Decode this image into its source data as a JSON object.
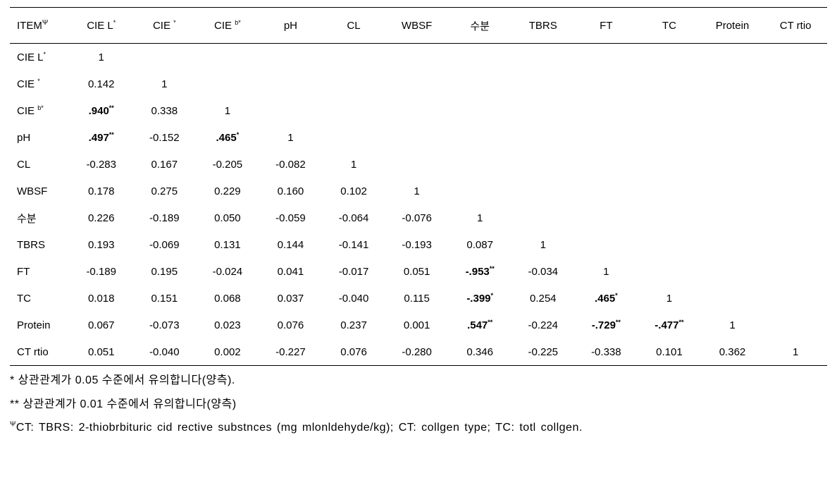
{
  "table": {
    "columns": [
      {
        "label": "ITEM",
        "sup": "Ψ"
      },
      {
        "label": "CIE L",
        "sup": "*"
      },
      {
        "label": "CIE ",
        "sup": "*"
      },
      {
        "label": "CIE ",
        "sup": "b*"
      },
      {
        "label": "pH"
      },
      {
        "label": "CL"
      },
      {
        "label": "WBSF"
      },
      {
        "label": "수분"
      },
      {
        "label": "TBRS"
      },
      {
        "label": "FT"
      },
      {
        "label": "TC"
      },
      {
        "label": "Protein"
      },
      {
        "label": "CT rtio"
      }
    ],
    "rows": [
      {
        "name": {
          "label": "CIE L",
          "sup": "*"
        },
        "cells": [
          {
            "v": "1"
          }
        ]
      },
      {
        "name": {
          "label": "CIE ",
          "sup": "*"
        },
        "cells": [
          {
            "v": "0.142"
          },
          {
            "v": "1"
          }
        ]
      },
      {
        "name": {
          "label": "CIE ",
          "sup": "b*"
        },
        "cells": [
          {
            "v": ".940",
            "sup": "**",
            "bold": true
          },
          {
            "v": "0.338"
          },
          {
            "v": "1"
          }
        ]
      },
      {
        "name": {
          "label": "pH"
        },
        "cells": [
          {
            "v": ".497",
            "sup": "**",
            "bold": true
          },
          {
            "v": "-0.152"
          },
          {
            "v": ".465",
            "sup": "*",
            "bold": true
          },
          {
            "v": "1"
          }
        ]
      },
      {
        "name": {
          "label": "CL"
        },
        "cells": [
          {
            "v": "-0.283"
          },
          {
            "v": "0.167"
          },
          {
            "v": "-0.205"
          },
          {
            "v": "-0.082"
          },
          {
            "v": "1"
          }
        ]
      },
      {
        "name": {
          "label": "WBSF"
        },
        "cells": [
          {
            "v": "0.178"
          },
          {
            "v": "0.275"
          },
          {
            "v": "0.229"
          },
          {
            "v": "0.160"
          },
          {
            "v": "0.102"
          },
          {
            "v": "1"
          }
        ]
      },
      {
        "name": {
          "label": "수분"
        },
        "cells": [
          {
            "v": "0.226"
          },
          {
            "v": "-0.189"
          },
          {
            "v": "0.050"
          },
          {
            "v": "-0.059"
          },
          {
            "v": "-0.064"
          },
          {
            "v": "-0.076"
          },
          {
            "v": "1"
          }
        ]
      },
      {
        "name": {
          "label": "TBRS"
        },
        "cells": [
          {
            "v": "0.193"
          },
          {
            "v": "-0.069"
          },
          {
            "v": "0.131"
          },
          {
            "v": "0.144"
          },
          {
            "v": "-0.141"
          },
          {
            "v": "-0.193"
          },
          {
            "v": "0.087"
          },
          {
            "v": "1"
          }
        ]
      },
      {
        "name": {
          "label": "FT"
        },
        "cells": [
          {
            "v": "-0.189"
          },
          {
            "v": "0.195"
          },
          {
            "v": "-0.024"
          },
          {
            "v": "0.041"
          },
          {
            "v": "-0.017"
          },
          {
            "v": "0.051"
          },
          {
            "v": "-.953",
            "sup": "**",
            "bold": true
          },
          {
            "v": "-0.034"
          },
          {
            "v": "1"
          }
        ]
      },
      {
        "name": {
          "label": "TC"
        },
        "cells": [
          {
            "v": "0.018"
          },
          {
            "v": "0.151"
          },
          {
            "v": "0.068"
          },
          {
            "v": "0.037"
          },
          {
            "v": "-0.040"
          },
          {
            "v": "0.115"
          },
          {
            "v": "-.399",
            "sup": "*",
            "bold": true
          },
          {
            "v": "0.254"
          },
          {
            "v": ".465",
            "sup": "*",
            "bold": true
          },
          {
            "v": "1"
          }
        ]
      },
      {
        "name": {
          "label": "Protein"
        },
        "cells": [
          {
            "v": "0.067"
          },
          {
            "v": "-0.073"
          },
          {
            "v": "0.023"
          },
          {
            "v": "0.076"
          },
          {
            "v": "0.237"
          },
          {
            "v": "0.001"
          },
          {
            "v": ".547",
            "sup": "**",
            "bold": true
          },
          {
            "v": "-0.224"
          },
          {
            "v": "-.729",
            "sup": "**",
            "bold": true
          },
          {
            "v": "-.477",
            "sup": "**",
            "bold": true
          },
          {
            "v": "1"
          }
        ]
      },
      {
        "name": {
          "label": "CT rtio"
        },
        "cells": [
          {
            "v": "0.051"
          },
          {
            "v": "-0.040"
          },
          {
            "v": "0.002"
          },
          {
            "v": "-0.227"
          },
          {
            "v": "0.076"
          },
          {
            "v": "-0.280"
          },
          {
            "v": "0.346"
          },
          {
            "v": "-0.225"
          },
          {
            "v": "-0.338"
          },
          {
            "v": "0.101"
          },
          {
            "v": "0.362"
          },
          {
            "v": "1"
          }
        ]
      }
    ]
  },
  "footnotes": {
    "f1": "* 상관관계가 0.05 수준에서 유의합니다(양측).",
    "f2": "** 상관관계가 0.01 수준에서 유의합니다(양측)",
    "f3_sup": "Ψ",
    "f3": "CT: TBRS: 2-thiobrbituric cid rective substnces (mg mlonldehyde/kg);  CT: collgen type; TC: totl collgen."
  }
}
